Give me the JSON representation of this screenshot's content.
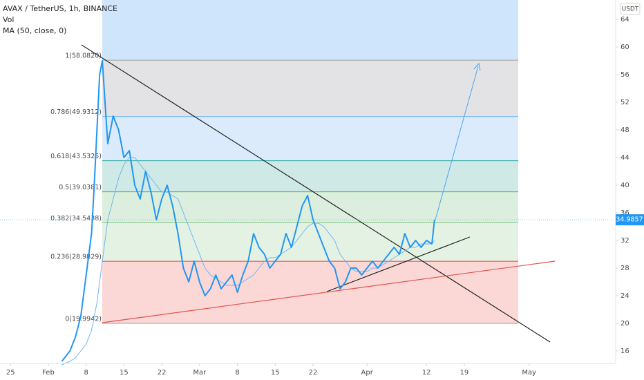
{
  "chart_data": {
    "type": "line",
    "currency": "USDT",
    "volume_label": "Vol",
    "last_price": 34.9857,
    "xlim": [
      -8.95,
      104.9
    ],
    "ylim": [
      14.3,
      66.8
    ],
    "yticks": [
      16,
      20,
      24,
      28,
      32,
      36,
      40,
      44,
      48,
      52,
      56,
      60,
      64
    ],
    "xticks": [
      {
        "value": -7,
        "label": "25"
      },
      {
        "value": 0,
        "label": "Feb"
      },
      {
        "value": 7,
        "label": "8"
      },
      {
        "value": 14,
        "label": "15"
      },
      {
        "value": 21,
        "label": "22"
      },
      {
        "value": 28,
        "label": "Mar"
      },
      {
        "value": 35,
        "label": "8"
      },
      {
        "value": 42,
        "label": "15"
      },
      {
        "value": 49,
        "label": "22"
      },
      {
        "value": 59,
        "label": "Apr"
      },
      {
        "value": 70,
        "label": "12"
      },
      {
        "value": 77,
        "label": "19"
      },
      {
        "value": 89,
        "label": "May"
      }
    ],
    "fib_levels": [
      {
        "label": "1(58.0820)",
        "value": 58.082,
        "color": "#9e9e9e",
        "fill": "#e3e3e6"
      },
      {
        "label": "0.786(49.9312)",
        "value": 49.9312,
        "color": "#64b5f6",
        "fill": "#dcebfb"
      },
      {
        "label": "0.618(43.5325)",
        "value": 43.5325,
        "color": "#26a69a",
        "fill": "#cfe9e6"
      },
      {
        "label": "0.5(39.0381)",
        "value": 39.0381,
        "color": "#4caf50",
        "fill": "#dceedd"
      },
      {
        "label": "0.382(34.5438)",
        "value": 34.5438,
        "color": "#81c784",
        "fill": "#e3f2e3"
      },
      {
        "label": "0.236(28.9829)",
        "value": 28.9829,
        "color": "#f44336",
        "fill": "#fbd7d6"
      },
      {
        "label": "0(19.9942)",
        "value": 19.9942,
        "color": "#9e9e9e"
      }
    ],
    "x": [
      2.5,
      4,
      5,
      6,
      7,
      8,
      8.5,
      9,
      9.5,
      10,
      10.5,
      11,
      12,
      13,
      14,
      15,
      16,
      17,
      18,
      19,
      20,
      21,
      22,
      23,
      24,
      25,
      26,
      27,
      28,
      29,
      30,
      31,
      32,
      33,
      34,
      35,
      36,
      37,
      38,
      39,
      40,
      41,
      42,
      43,
      44,
      45,
      46,
      47,
      48,
      49,
      50,
      51,
      52,
      53,
      54,
      55,
      56,
      57,
      58,
      59,
      60,
      61,
      62,
      63,
      64,
      65,
      66,
      67,
      68,
      69,
      70,
      71,
      71.5
    ],
    "series": [
      {
        "name": "AVAX / TetherUS, 1h, BINANCE",
        "color": "#2196f3",
        "values": [
          14.5,
          16,
          18,
          21,
          27,
          33,
          40,
          48,
          56,
          58,
          52,
          46,
          50,
          48,
          44,
          45,
          40,
          38,
          42,
          39,
          35,
          38,
          40,
          37,
          33,
          28,
          26,
          29,
          26,
          24,
          25,
          27,
          25,
          26,
          27,
          24.5,
          27,
          29,
          33,
          31,
          30,
          28,
          29,
          30,
          33,
          31,
          34,
          37,
          38.5,
          35,
          33,
          31,
          29,
          28,
          25,
          26,
          28,
          28,
          27,
          28,
          29,
          28,
          29,
          30,
          31,
          30,
          33,
          31,
          32,
          31,
          32,
          31.5,
          35
        ]
      },
      {
        "name": "MA (50, close, 0)",
        "color": "#6fb3f2",
        "values": [
          14,
          14.5,
          15,
          16,
          17,
          19,
          21,
          23,
          26,
          29,
          32,
          35,
          38,
          41,
          43,
          44,
          44,
          43,
          42,
          41,
          40,
          39,
          39,
          38.5,
          38,
          36,
          34,
          32,
          30,
          28,
          27,
          26.5,
          26,
          25.5,
          25.5,
          25.5,
          26,
          26.5,
          27,
          28,
          29,
          29.5,
          29.5,
          30,
          30.5,
          31,
          32,
          33,
          34,
          34.5,
          34.5,
          34,
          33,
          32,
          30,
          29,
          28,
          27.5,
          27.5,
          27.5,
          28,
          28,
          28.5,
          29,
          29.5,
          30,
          30.5,
          31,
          31,
          31.5,
          31.5,
          31.5,
          32
        ]
      }
    ]
  }
}
